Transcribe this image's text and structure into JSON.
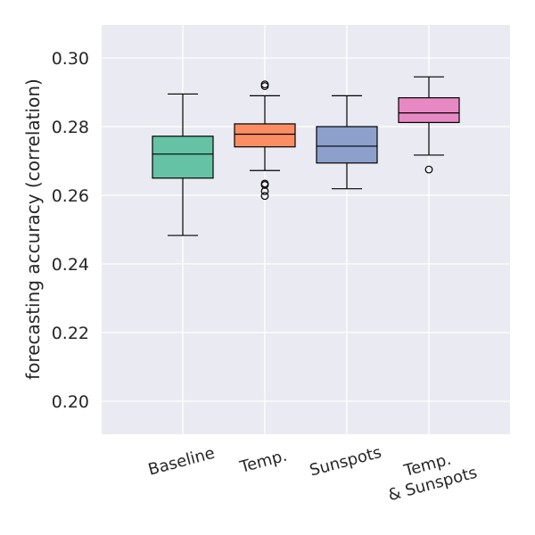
{
  "chart_data": {
    "type": "box",
    "title": "",
    "xlabel": "",
    "ylabel": "forecasting accuracy (correlation)",
    "ylim": [
      0.19,
      0.309
    ],
    "yticks": [
      0.2,
      0.22,
      0.24,
      0.26,
      0.28,
      0.3
    ],
    "ytick_labels": [
      "0.20",
      "0.22",
      "0.24",
      "0.26",
      "0.28",
      "0.30"
    ],
    "grid": true,
    "categories": [
      {
        "label_lines": [
          "Baseline"
        ]
      },
      {
        "label_lines": [
          "Temp."
        ]
      },
      {
        "label_lines": [
          "Sunspots"
        ]
      },
      {
        "label_lines": [
          "Temp.",
          "& Sunspots"
        ]
      }
    ],
    "boxes": [
      {
        "name": "Baseline",
        "whisker_low": 0.2483,
        "q1": 0.265,
        "median": 0.272,
        "q3": 0.2772,
        "whisker_high": 0.2895,
        "outliers": [],
        "color": "#66c2a5"
      },
      {
        "name": "Temp.",
        "whisker_low": 0.2672,
        "q1": 0.2741,
        "median": 0.2778,
        "q3": 0.2808,
        "whisker_high": 0.289,
        "outliers": [
          0.2923,
          0.2918,
          0.2634,
          0.263,
          0.2612,
          0.2598
        ],
        "color": "#fc8d62"
      },
      {
        "name": "Sunspots",
        "whisker_low": 0.2619,
        "q1": 0.2694,
        "median": 0.2743,
        "q3": 0.28,
        "whisker_high": 0.289,
        "outliers": [],
        "color": "#8da0cb"
      },
      {
        "name": "Temp. & Sunspots",
        "whisker_low": 0.2717,
        "q1": 0.2812,
        "median": 0.284,
        "q3": 0.2884,
        "whisker_high": 0.2945,
        "outliers": [
          0.2675
        ],
        "color": "#e78ac3"
      }
    ]
  }
}
